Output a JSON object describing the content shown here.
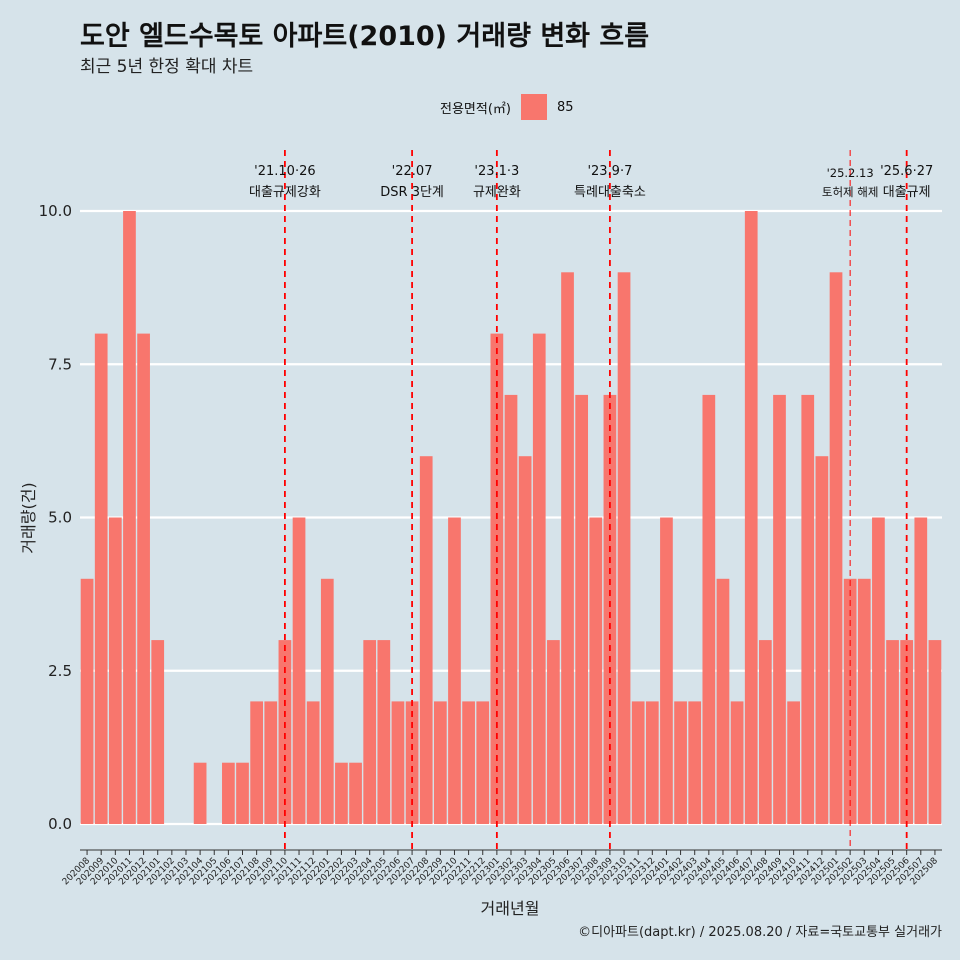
{
  "title": "도안 엘드수목토 아파트(2010) 거래량 변화 흐름",
  "subtitle": "최근 5년 한정 확대 차트",
  "legend": {
    "title": "전용면적(㎡)",
    "items": [
      {
        "label": "85",
        "color": "#f8766d"
      }
    ]
  },
  "caption": "©디아파트(dapt.kr) / 2025.08.20 / 자료=국토교통부 실거래가",
  "chart_data": {
    "type": "bar",
    "xlabel": "거래년월",
    "ylabel": "거래량(건)",
    "ylim": [
      0,
      10
    ],
    "yticks": [
      "0.0",
      "2.5",
      "5.0",
      "7.5",
      "10.0"
    ],
    "grid": true,
    "legend_position": "top",
    "series": [
      {
        "name": "85",
        "color": "#f8766d"
      }
    ],
    "categories": [
      "202008",
      "202009",
      "202010",
      "202011",
      "202012",
      "202101",
      "202102",
      "202103",
      "202104",
      "202105",
      "202106",
      "202107",
      "202108",
      "202109",
      "202110",
      "202111",
      "202112",
      "202201",
      "202202",
      "202203",
      "202204",
      "202205",
      "202206",
      "202207",
      "202208",
      "202209",
      "202210",
      "202211",
      "202212",
      "202301",
      "202302",
      "202303",
      "202304",
      "202305",
      "202306",
      "202307",
      "202308",
      "202309",
      "202310",
      "202311",
      "202312",
      "202401",
      "202402",
      "202403",
      "202404",
      "202405",
      "202406",
      "202407",
      "202408",
      "202409",
      "202410",
      "202411",
      "202412",
      "202501",
      "202502",
      "202503",
      "202504",
      "202505",
      "202506",
      "202507",
      "202508"
    ],
    "values": [
      4,
      8,
      5,
      10,
      8,
      3,
      0,
      0,
      1,
      0,
      1,
      1,
      2,
      2,
      3,
      5,
      2,
      4,
      1,
      1,
      3,
      3,
      2,
      2,
      6,
      2,
      5,
      2,
      2,
      8,
      7,
      6,
      8,
      3,
      9,
      7,
      5,
      7,
      9,
      2,
      2,
      5,
      2,
      2,
      7,
      4,
      2,
      10,
      3,
      7,
      2,
      7,
      6,
      9,
      4,
      4,
      5,
      3,
      3,
      5,
      3
    ],
    "annotations": [
      {
        "date": "'21.10·26",
        "label": "대출규제강화",
        "category": "202110",
        "style": "dashed"
      },
      {
        "date": "'22.07",
        "label": "DSR 3단계",
        "category": "202207",
        "style": "dashed"
      },
      {
        "date": "'23.1·3",
        "label": "규제완화",
        "category": "202301",
        "style": "dashed"
      },
      {
        "date": "'23.9·7",
        "label": "특례대출축소",
        "category": "202309",
        "style": "dashed"
      },
      {
        "date": "'25.2.13",
        "label": "토허제 해제",
        "category": "202502",
        "style": "thin"
      },
      {
        "date": "'25.6·27",
        "label": "대출규제",
        "category": "202506",
        "style": "dashed"
      }
    ]
  }
}
